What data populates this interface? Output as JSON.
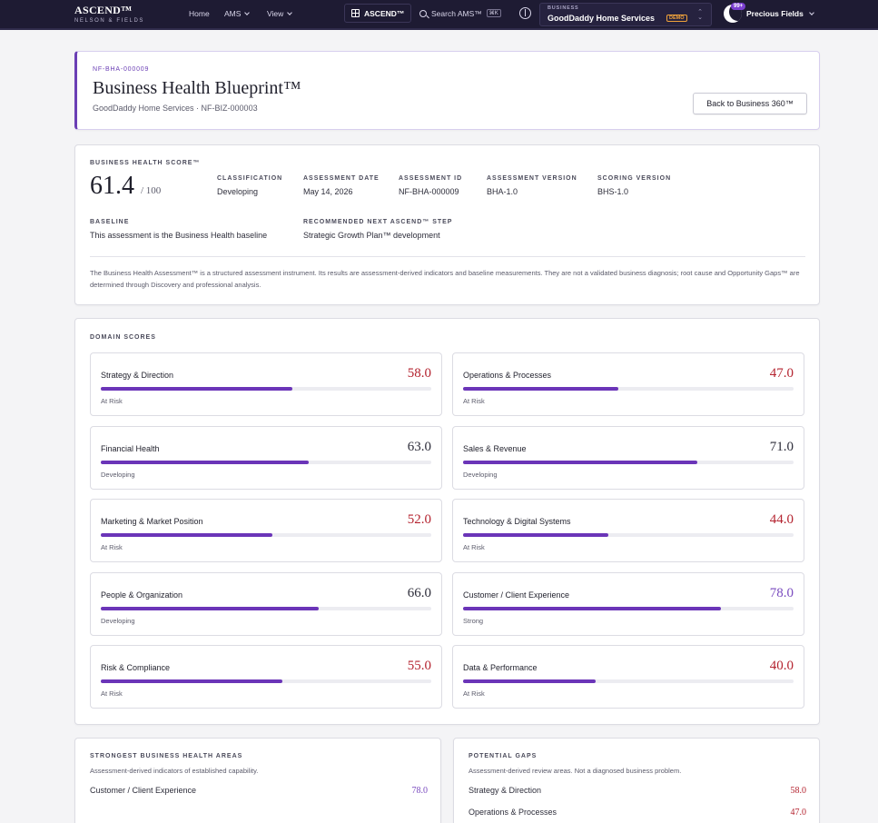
{
  "nav": {
    "logo": "ASCEND™",
    "logo_sub": "NELSON & FIELDS",
    "home": "Home",
    "ams": "AMS",
    "view": "View",
    "ascend_btn": "ASCEND™",
    "search": "Search AMS™",
    "search_kbd": "⌘K",
    "business_caption": "BUSINESS",
    "business_name": "GoodDaddy Home Services",
    "demo_badge": "DEMO",
    "notif_count": "99+",
    "user_name": "Precious Fields"
  },
  "hero": {
    "id": "NF-BHA-000009",
    "title": "Business Health Blueprint™",
    "subtitle": "GoodDaddy Home Services · NF-BIZ-000003",
    "back_button": "Back to Business 360™"
  },
  "summary": {
    "score_label": "BUSINESS HEALTH SCORE™",
    "score": "61.4",
    "score_of": "/ 100",
    "fields": [
      {
        "label": "CLASSIFICATION",
        "value": "Developing"
      },
      {
        "label": "ASSESSMENT DATE",
        "value": "May 14, 2026"
      },
      {
        "label": "ASSESSMENT ID",
        "value": "NF-BHA-000009"
      },
      {
        "label": "ASSESSMENT VERSION",
        "value": "BHA-1.0"
      },
      {
        "label": "SCORING VERSION",
        "value": "BHS-1.0"
      }
    ],
    "baseline_label": "BASELINE",
    "baseline_value": "This assessment is the Business Health baseline",
    "next_label": "RECOMMENDED NEXT ASCEND™ STEP",
    "next_value": "Strategic Growth Plan™ development",
    "disclaimer": "The Business Health Assessment™ is a structured assessment instrument. Its results are assessment-derived indicators and baseline measurements. They are not a validated business diagnosis; root cause and Opportunity Gaps™ are determined through Discovery and professional analysis."
  },
  "domains": {
    "label": "DOMAIN SCORES",
    "items": [
      {
        "name": "Strategy & Direction",
        "score": "58.0",
        "status": "At Risk",
        "value": 58
      },
      {
        "name": "Operations & Processes",
        "score": "47.0",
        "status": "At Risk",
        "value": 47
      },
      {
        "name": "Financial Health",
        "score": "63.0",
        "status": "Developing",
        "value": 63
      },
      {
        "name": "Sales & Revenue",
        "score": "71.0",
        "status": "Developing",
        "value": 71
      },
      {
        "name": "Marketing & Market Position",
        "score": "52.0",
        "status": "At Risk",
        "value": 52
      },
      {
        "name": "Technology & Digital Systems",
        "score": "44.0",
        "status": "At Risk",
        "value": 44
      },
      {
        "name": "People & Organization",
        "score": "66.0",
        "status": "Developing",
        "value": 66
      },
      {
        "name": "Customer / Client Experience",
        "score": "78.0",
        "status": "Strong",
        "value": 78
      },
      {
        "name": "Risk & Compliance",
        "score": "55.0",
        "status": "At Risk",
        "value": 55
      },
      {
        "name": "Data & Performance",
        "score": "40.0",
        "status": "At Risk",
        "value": 40
      }
    ]
  },
  "strongest": {
    "title": "STRONGEST BUSINESS HEALTH AREAS",
    "subtitle": "Assessment-derived indicators of established capability.",
    "items": [
      {
        "name": "Customer / Client Experience",
        "score": "78.0"
      }
    ]
  },
  "gaps": {
    "title": "POTENTIAL GAPS",
    "subtitle": "Assessment-derived review areas. Not a diagnosed business problem.",
    "items": [
      {
        "name": "Strategy & Direction",
        "score": "58.0"
      },
      {
        "name": "Operations & Processes",
        "score": "47.0"
      }
    ]
  },
  "colors": {
    "at_risk": "#b4232f",
    "developing": "#2d2d3a",
    "strong": "#7a4bbf",
    "bar": "#6b35b8",
    "nav_bg": "#1e1b33"
  }
}
